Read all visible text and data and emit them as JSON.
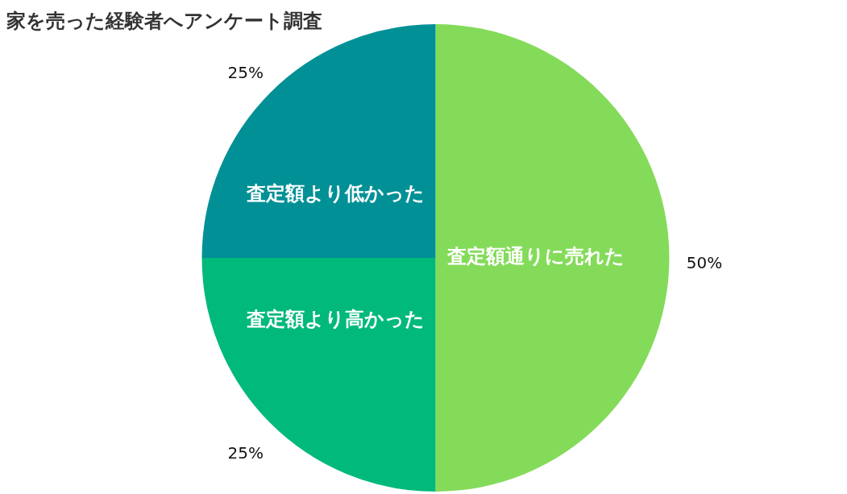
{
  "chart_data": {
    "type": "pie",
    "title": "家を売った経験者へアンケート調査",
    "categories": [
      "査定額通りに売れた",
      "査定額より高かった",
      "査定額より低かった"
    ],
    "values": [
      50,
      25,
      25
    ],
    "value_labels": [
      "50%",
      "25%",
      "25%"
    ],
    "colors": [
      "#84db5a",
      "#00b97a",
      "#009096"
    ],
    "legend": false
  }
}
